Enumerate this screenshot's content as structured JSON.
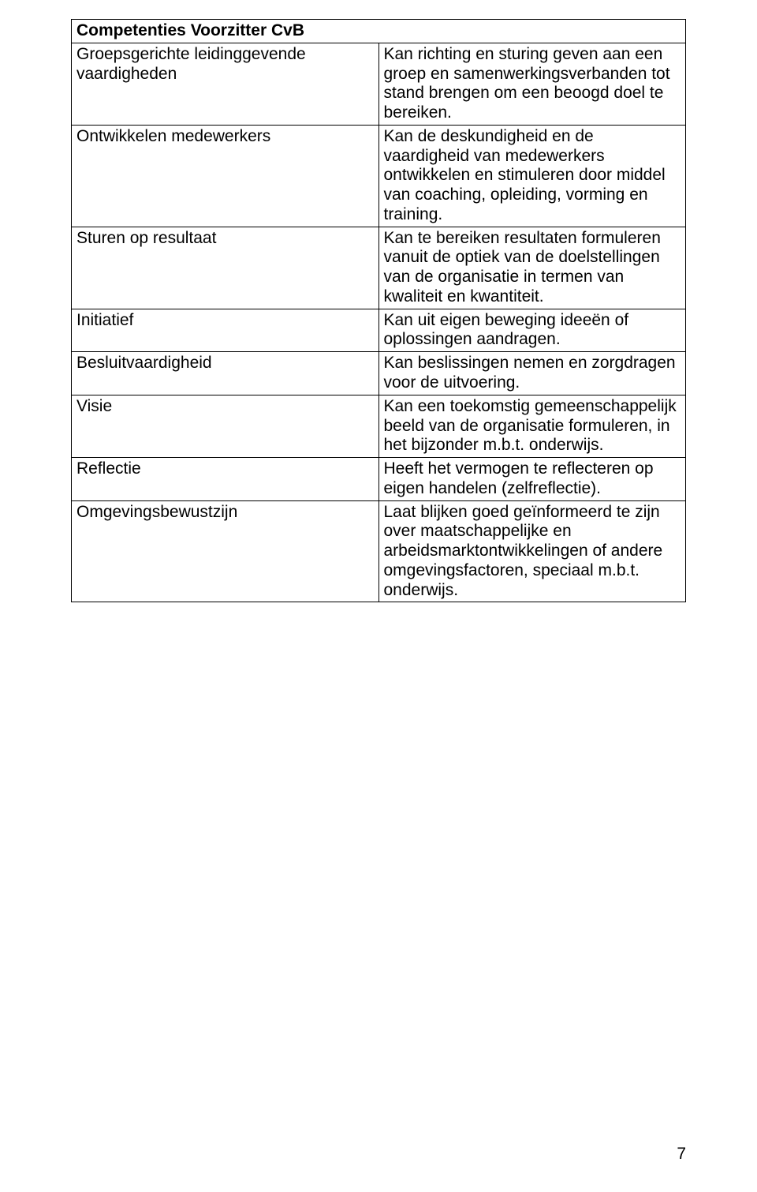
{
  "table": {
    "header": "Competenties Voorzitter CvB",
    "rows": [
      {
        "left": "Groepsgerichte leidinggevende vaardigheden",
        "right": "Kan richting en sturing geven aan een groep en samenwerkingsverbanden tot stand brengen om een beoogd doel te bereiken."
      },
      {
        "left": "Ontwikkelen medewerkers",
        "right": "Kan de deskundigheid en de vaardigheid van medewerkers ontwikkelen en stimuleren door middel van coaching, opleiding, vorming en training."
      },
      {
        "left": "Sturen op resultaat",
        "right": "Kan te bereiken resultaten formuleren vanuit de optiek van de doelstellingen van de organisatie in termen van kwaliteit en kwantiteit."
      },
      {
        "left": "Initiatief",
        "right": "Kan uit eigen beweging ideeën of oplossingen aandragen."
      },
      {
        "left": "Besluitvaardigheid",
        "right": "Kan beslissingen nemen en zorgdragen voor de uitvoering."
      },
      {
        "left": "Visie",
        "right": "Kan een toekomstig gemeenschappelijk beeld van de organisatie formuleren, in het bijzonder m.b.t. onderwijs."
      },
      {
        "left": "Reflectie",
        "right": "Heeft het vermogen te reflecteren op eigen handelen (zelfreflectie)."
      },
      {
        "left": "Omgevingsbewustzijn",
        "right": "Laat blijken goed geïnformeerd te zijn over maatschappelijke en arbeidsmarktontwikkelingen of andere omgevingsfactoren, speciaal m.b.t. onderwijs."
      }
    ]
  },
  "page_number": "7",
  "colors": {
    "text": "#000000",
    "border": "#000000",
    "background": "#ffffff"
  },
  "typography": {
    "font_family": "Arial",
    "body_fontsize_pt": 16,
    "header_weight": "bold"
  }
}
